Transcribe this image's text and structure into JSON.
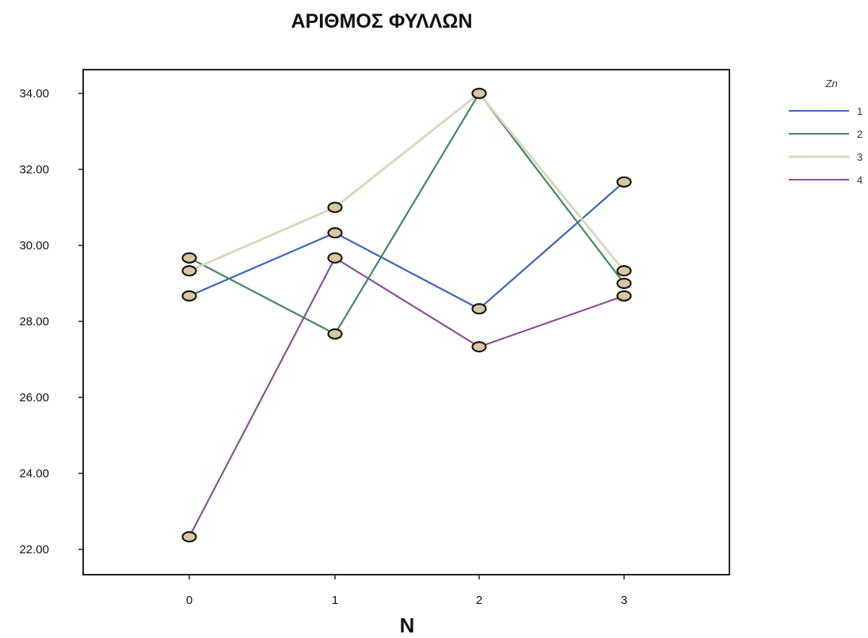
{
  "chart_data": {
    "type": "line",
    "title": "ΑΡΙΘΜΟΣ ΦΥΛΛΩΝ",
    "xlabel": "N",
    "ylabel": "",
    "categories": [
      "0",
      "1",
      "2",
      "3"
    ],
    "ylim": [
      21.5,
      35.2
    ],
    "yticks": [
      "22.00",
      "24.00",
      "26.00",
      "28.00",
      "30.00",
      "32.00",
      "34.00"
    ],
    "grid": false,
    "legend": {
      "title": "Zn",
      "position": "top-right"
    },
    "marker_fill": "#d8c8a0",
    "series": [
      {
        "name": "1",
        "color": "#3a66b8",
        "values": [
          28.67,
          30.33,
          28.33,
          31.67
        ]
      },
      {
        "name": "2",
        "color": "#3f8a5a",
        "values": [
          29.67,
          27.67,
          34.0,
          29.0
        ]
      },
      {
        "name": "3",
        "color": "#dcd6bc",
        "values": [
          29.33,
          31.0,
          34.0,
          29.33
        ]
      },
      {
        "name": "4",
        "color": "#8e4f9a",
        "values": [
          22.33,
          29.67,
          27.33,
          28.67
        ]
      }
    ]
  }
}
